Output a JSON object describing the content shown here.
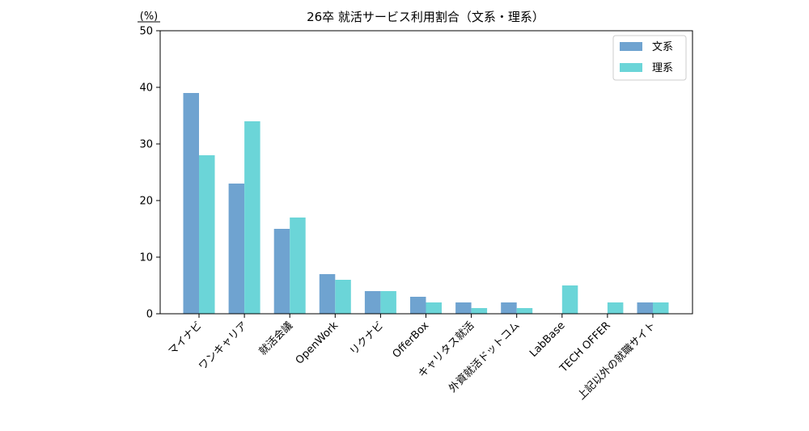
{
  "chart_data": {
    "type": "bar",
    "title": "26卒 就活サービス利用割合（文系・理系）",
    "unit_label": "(%)",
    "categories": [
      "マイナビ",
      "ワンキャリア",
      "就活会議",
      "OpenWork",
      "リクナビ",
      "OfferBox",
      "キャリタス就活",
      "外資就活ドットコム",
      "LabBase",
      "TECH OFFER",
      "上記以外の就職サイト"
    ],
    "series": [
      {
        "name": "文系",
        "color": "#6fa3d0",
        "values": [
          39,
          23,
          15,
          7,
          4,
          3,
          2,
          2,
          0,
          0,
          2
        ]
      },
      {
        "name": "理系",
        "color": "#6bd5d8",
        "values": [
          28,
          34,
          17,
          6,
          4,
          2,
          1,
          1,
          5,
          2,
          2
        ]
      }
    ],
    "ylim": [
      0,
      50
    ],
    "yticks": [
      0,
      10,
      20,
      30,
      40,
      50
    ],
    "legend_position": "top-right",
    "grid": false
  }
}
